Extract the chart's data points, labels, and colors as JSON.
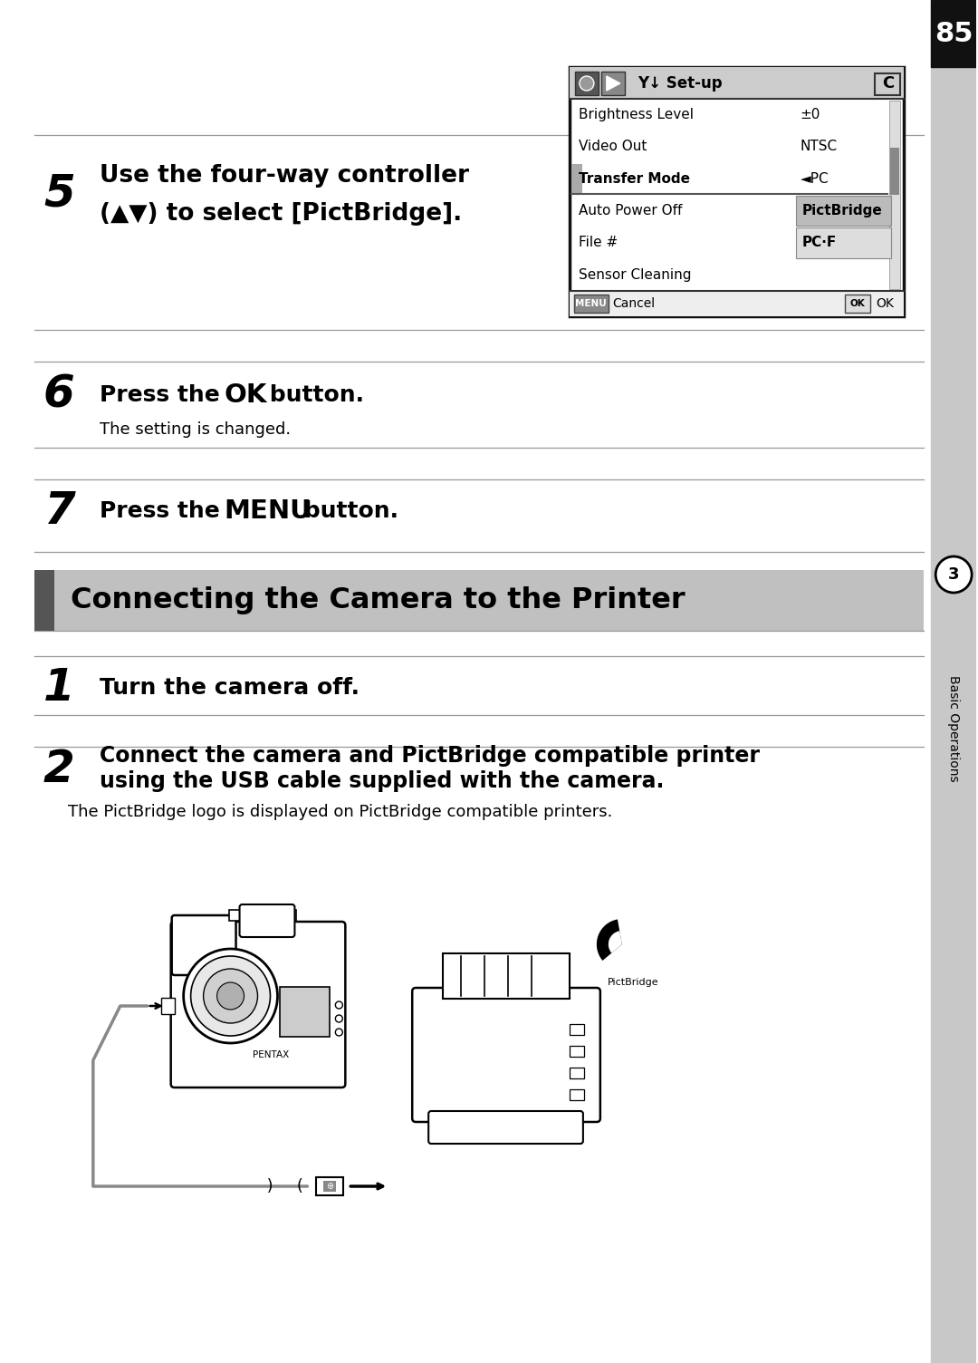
{
  "page_number": "85",
  "bg_color": "#ffffff",
  "sidebar_color": "#c8c8c8",
  "step5_number": "5",
  "step5_text_line1": "Use the four-way controller",
  "step5_text_line2": "(▲▼) to select [PictBridge].",
  "step6_number": "6",
  "step6_sub": "The setting is changed.",
  "step7_number": "7",
  "section_title": "Connecting the Camera to the Printer",
  "step1_number": "1",
  "step1_bold": "Turn the camera off.",
  "step2_number": "2",
  "step2_bold_line1": "Connect the camera and PictBridge compatible printer",
  "step2_bold_line2": "using the USB cable supplied with the camera.",
  "step2_sub": "The PictBridge logo is displayed on PictBridge compatible printers.",
  "sidebar_label": "Basic Operations",
  "sidebar_num": "3",
  "menu_items": [
    "Brightness Level",
    "Video Out",
    "Transfer Mode",
    "Auto Power Off",
    "File #",
    "Sensor Cleaning"
  ],
  "menu_values": [
    "±0",
    "NTSC",
    "",
    "",
    "",
    ""
  ],
  "menu_highlighted_idx": 2,
  "menu_dropdown": [
    "PictBridge",
    "PC·F"
  ],
  "menu_bottom_left": "MENU",
  "menu_bottom_left2": "Cancel",
  "menu_bottom_right": "OK",
  "menu_bottom_right2": "OK",
  "line_color": "#999999",
  "line_lw": 0.9
}
